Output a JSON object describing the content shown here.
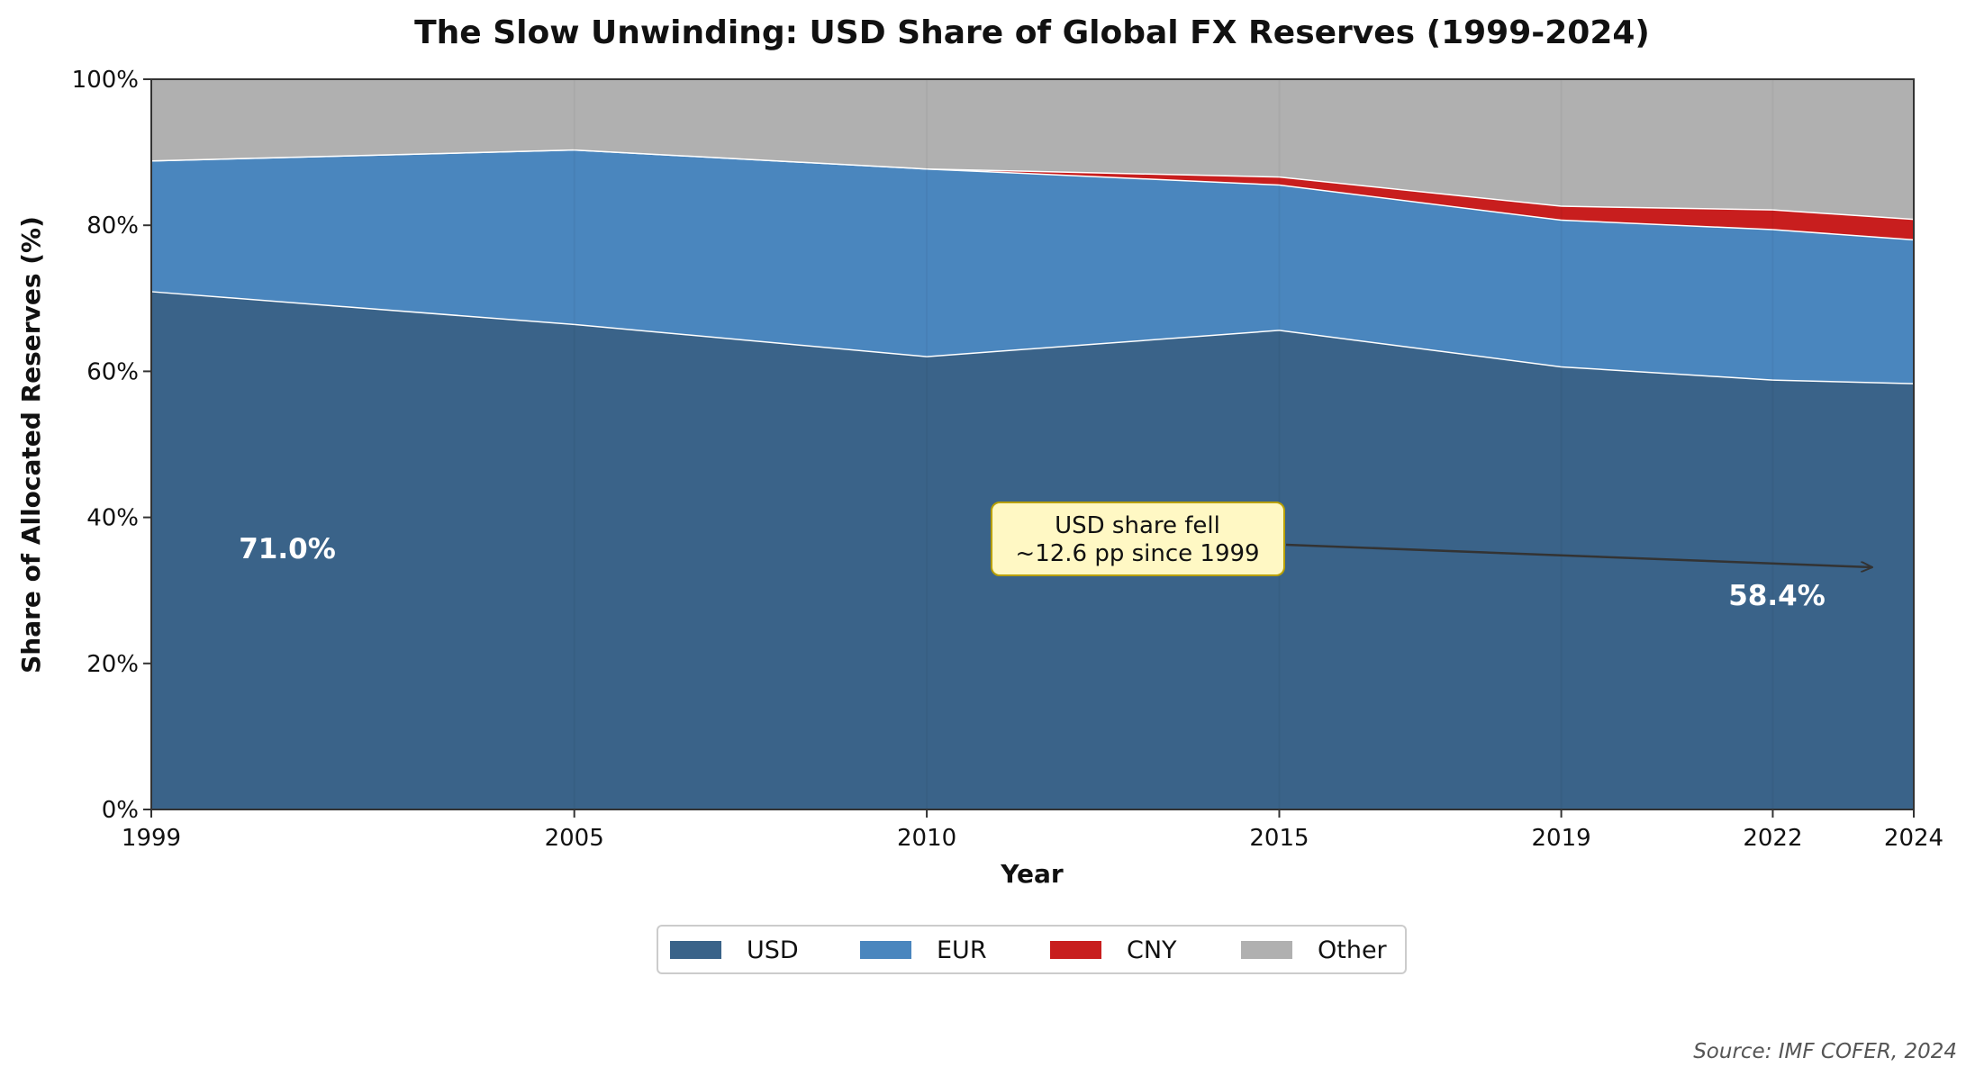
{
  "chart_data": {
    "type": "area",
    "stacked": true,
    "title": "The Slow Unwinding: USD Share of Global FX Reserves (1999-2024)",
    "xlabel": "Year",
    "ylabel": "Share of Allocated Reserves (%)",
    "x": [
      1999,
      2005,
      2010,
      2015,
      2019,
      2022,
      2024
    ],
    "xticks": [
      "1999",
      "2005",
      "2010",
      "2015",
      "2019",
      "2022",
      "2024"
    ],
    "yticks": [
      "0%",
      "20%",
      "40%",
      "60%",
      "80%",
      "100%"
    ],
    "ylim": [
      0,
      100
    ],
    "grid": true,
    "legend_position": "bottom-center",
    "series": [
      {
        "name": "USD",
        "color": "#3a6389",
        "values": [
          71.0,
          66.5,
          62.1,
          65.7,
          60.7,
          58.9,
          58.4
        ]
      },
      {
        "name": "EUR",
        "color": "#4a86be",
        "values": [
          17.9,
          23.9,
          25.7,
          19.9,
          20.1,
          20.6,
          19.7
        ]
      },
      {
        "name": "CNY",
        "color": "#c81e1e",
        "values": [
          0,
          0,
          0,
          1.1,
          1.9,
          2.7,
          2.8
        ]
      },
      {
        "name": "Other",
        "color": "#b0b0b0",
        "values": [
          11.1,
          9.6,
          12.2,
          13.3,
          17.3,
          17.8,
          19.1
        ]
      }
    ],
    "annotations": {
      "start_label": "71.0%",
      "end_label": "58.4%",
      "callout_line1": "USD share fell",
      "callout_line2": "~12.6 pp since 1999"
    },
    "source": "Source: IMF COFER, 2024"
  }
}
